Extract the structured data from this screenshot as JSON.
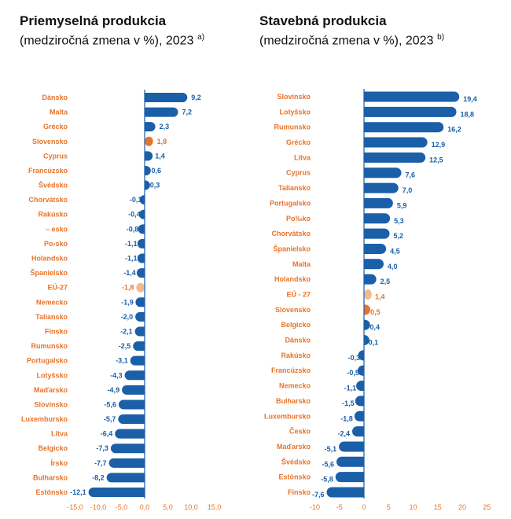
{
  "colors": {
    "bar": "#1a5fa8",
    "slovakia": "#e8742a",
    "eu": "#f4b98b",
    "label": "#e8742a",
    "value": "#1a5fa8"
  },
  "chart_data": [
    {
      "type": "bar",
      "orientation": "horizontal",
      "title": "Priemyselná produkcia",
      "subtitle": "(medziročná zmena v %), 2023",
      "note": "a)",
      "xlim": [
        -15,
        15
      ],
      "ticks": [
        -15,
        -10,
        -5,
        0,
        5,
        10,
        15
      ],
      "tick_labels": [
        "-15,0",
        "-10,0",
        "-5,0",
        "0,0",
        "5,0",
        "10,0",
        "15,0"
      ],
      "categories": [
        "Dánsko",
        "Malta",
        "Grécko",
        "Slovensko",
        "Cyprus",
        "Francúzsko",
        "Švédsko",
        "Chorvátsko",
        "Rakúsko",
        "– esko",
        "Po›sko",
        "Holandsko",
        "Španielsko",
        "EÚ-27",
        "Nemecko",
        "Taliansko",
        "Fínsko",
        "Rumunsko",
        "Portugalsko",
        "Lotyšsko",
        "Maďarsko",
        "Slovinsko",
        "Luxembursko",
        "Litva",
        "Belgicko",
        "Írsko",
        "Bulharsko",
        "Estónsko"
      ],
      "values": [
        9.2,
        7.2,
        2.3,
        1.8,
        1.4,
        0.6,
        0.3,
        -0.1,
        -0.4,
        -0.8,
        -1.1,
        -1.1,
        -1.4,
        -1.8,
        -1.9,
        -2.0,
        -2.1,
        -2.5,
        -3.1,
        -4.3,
        -4.9,
        -5.6,
        -5.7,
        -6.4,
        -7.3,
        -7.7,
        -8.2,
        -12.1
      ],
      "value_labels": [
        "9,2",
        "7,2",
        "2,3",
        "1,8",
        "1,4",
        "0,6",
        "0,3",
        "-0,1",
        "-0,4",
        "-0,8",
        "-1,1",
        "-1,1",
        "-1,4",
        "-1,8",
        "-1,9",
        "-2,0",
        "-2,1",
        "-2,5",
        "-3,1",
        "-4,3",
        "-4,9",
        "-5,6",
        "-5,7",
        "-6,4",
        "-7,3",
        "-7,7",
        "-8,2",
        "-12,1"
      ],
      "highlight": {
        "Slovensko": "slovakia",
        "EÚ-27": "eu"
      }
    },
    {
      "type": "bar",
      "orientation": "horizontal",
      "title": "Stavebná produkcia",
      "subtitle": "(medziročná zmena v %), 2023",
      "note": "b)",
      "xlim": [
        -10,
        25
      ],
      "ticks": [
        -10,
        -5,
        0,
        5,
        10,
        15,
        20,
        25
      ],
      "tick_labels": [
        "-10",
        "-5",
        "0",
        "5",
        "10",
        "15",
        "20",
        "25"
      ],
      "categories": [
        "Slovinsko",
        "Lotyšsko",
        "Rumunsko",
        "Grécko",
        "Litva",
        "Cyprus",
        "Taliansko",
        "Portugalsko",
        "Po‰ko",
        "Chorvátsko",
        "Španielsko",
        "Malta",
        "Holandsko",
        "EÚ - 27",
        "Slovensko",
        "Belgicko",
        "Dánsko",
        "Rakúsko",
        "Francúzsko",
        "Nemecko",
        "Bulharsko",
        "Luxembursko",
        "Česko",
        "Maďarsko",
        "Švédsko",
        "Estónsko",
        "Fínsko"
      ],
      "values": [
        19.4,
        18.8,
        16.2,
        12.9,
        12.5,
        7.6,
        7.0,
        5.9,
        5.3,
        5.2,
        4.5,
        4.0,
        2.5,
        1.4,
        0.5,
        0.4,
        0.1,
        -0.3,
        -0.5,
        -1.1,
        -1.5,
        -1.8,
        -2.4,
        -5.1,
        -5.6,
        -5.8,
        -7.6
      ],
      "value_labels": [
        "19,4",
        "18,8",
        "16,2",
        "12,9",
        "12,5",
        "7,6",
        "7,0",
        "5,9",
        "5,3",
        "5,2",
        "4,5",
        "4,0",
        "2,5",
        "1,4",
        "0,5",
        "0,4",
        "0,1",
        "-0,3",
        "-0,5",
        "-1,1",
        "-1,5",
        "-1,8",
        "-2,4",
        "-5,1",
        "-5,6",
        "-5,8",
        "-7,6"
      ],
      "highlight": {
        "Slovensko": "slovakia",
        "EÚ - 27": "eu"
      }
    }
  ]
}
